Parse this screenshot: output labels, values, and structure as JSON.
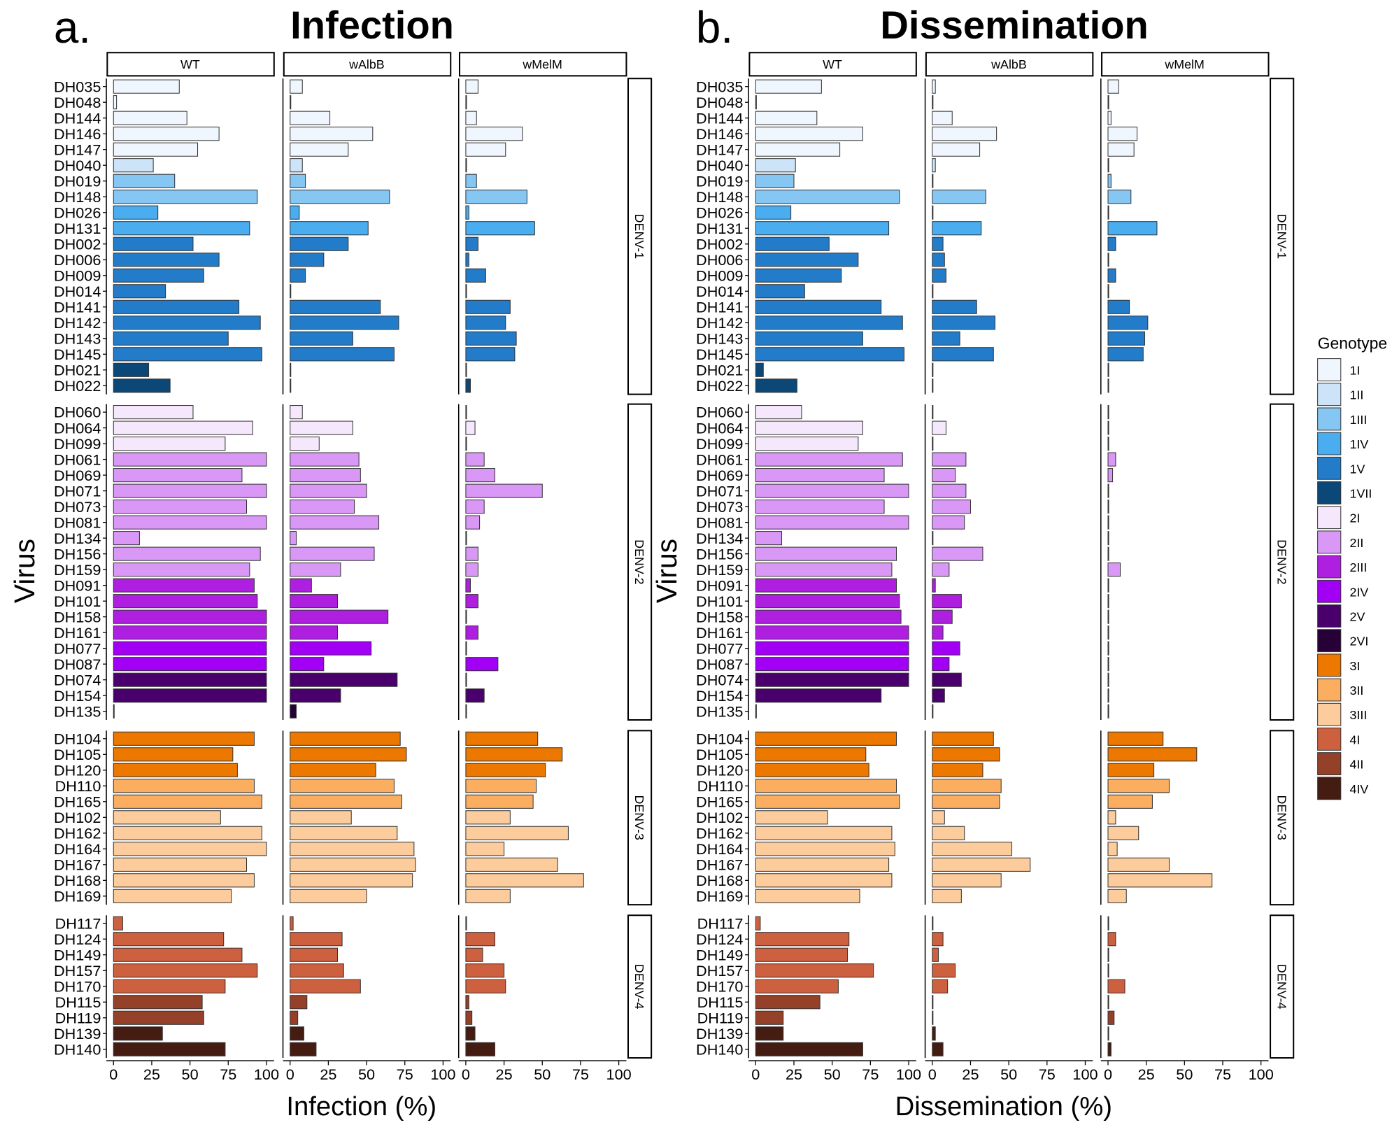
{
  "legend": {
    "title": "Genotype",
    "placement": "right",
    "items": [
      {
        "label": "1I",
        "color": "#eff6fd"
      },
      {
        "label": "1II",
        "color": "#cde4f8"
      },
      {
        "label": "1III",
        "color": "#86c6f3"
      },
      {
        "label": "1IV",
        "color": "#4aadef"
      },
      {
        "label": "1V",
        "color": "#237cca"
      },
      {
        "label": "1VII",
        "color": "#0c4877"
      },
      {
        "label": "2I",
        "color": "#f6e8fc"
      },
      {
        "label": "2II",
        "color": "#da98f6"
      },
      {
        "label": "2III",
        "color": "#ae1fdf"
      },
      {
        "label": "2IV",
        "color": "#a100f5"
      },
      {
        "label": "2V",
        "color": "#4a006c"
      },
      {
        "label": "2VI",
        "color": "#270038"
      },
      {
        "label": "3I",
        "color": "#ec7800"
      },
      {
        "label": "3II",
        "color": "#fbae5f"
      },
      {
        "label": "3III",
        "color": "#fdcc9c"
      },
      {
        "label": "4I",
        "color": "#cd603e"
      },
      {
        "label": "4II",
        "color": "#954028"
      },
      {
        "label": "4IV",
        "color": "#451c12"
      }
    ]
  },
  "ylabel": "Virus",
  "serotypes": [
    "DENV-1",
    "DENV-2",
    "DENV-3",
    "DENV-4"
  ],
  "viruses": [
    {
      "virus": "DH035",
      "serotype": "DENV-1",
      "genotype": "1I"
    },
    {
      "virus": "DH048",
      "serotype": "DENV-1",
      "genotype": "1I"
    },
    {
      "virus": "DH144",
      "serotype": "DENV-1",
      "genotype": "1I"
    },
    {
      "virus": "DH146",
      "serotype": "DENV-1",
      "genotype": "1I"
    },
    {
      "virus": "DH147",
      "serotype": "DENV-1",
      "genotype": "1I"
    },
    {
      "virus": "DH040",
      "serotype": "DENV-1",
      "genotype": "1II"
    },
    {
      "virus": "DH019",
      "serotype": "DENV-1",
      "genotype": "1III"
    },
    {
      "virus": "DH148",
      "serotype": "DENV-1",
      "genotype": "1III"
    },
    {
      "virus": "DH026",
      "serotype": "DENV-1",
      "genotype": "1IV"
    },
    {
      "virus": "DH131",
      "serotype": "DENV-1",
      "genotype": "1IV"
    },
    {
      "virus": "DH002",
      "serotype": "DENV-1",
      "genotype": "1V"
    },
    {
      "virus": "DH006",
      "serotype": "DENV-1",
      "genotype": "1V"
    },
    {
      "virus": "DH009",
      "serotype": "DENV-1",
      "genotype": "1V"
    },
    {
      "virus": "DH014",
      "serotype": "DENV-1",
      "genotype": "1V"
    },
    {
      "virus": "DH141",
      "serotype": "DENV-1",
      "genotype": "1V"
    },
    {
      "virus": "DH142",
      "serotype": "DENV-1",
      "genotype": "1V"
    },
    {
      "virus": "DH143",
      "serotype": "DENV-1",
      "genotype": "1V"
    },
    {
      "virus": "DH145",
      "serotype": "DENV-1",
      "genotype": "1V"
    },
    {
      "virus": "DH021",
      "serotype": "DENV-1",
      "genotype": "1VII"
    },
    {
      "virus": "DH022",
      "serotype": "DENV-1",
      "genotype": "1VII"
    },
    {
      "virus": "DH060",
      "serotype": "DENV-2",
      "genotype": "2I"
    },
    {
      "virus": "DH064",
      "serotype": "DENV-2",
      "genotype": "2I"
    },
    {
      "virus": "DH099",
      "serotype": "DENV-2",
      "genotype": "2I"
    },
    {
      "virus": "DH061",
      "serotype": "DENV-2",
      "genotype": "2II"
    },
    {
      "virus": "DH069",
      "serotype": "DENV-2",
      "genotype": "2II"
    },
    {
      "virus": "DH071",
      "serotype": "DENV-2",
      "genotype": "2II"
    },
    {
      "virus": "DH073",
      "serotype": "DENV-2",
      "genotype": "2II"
    },
    {
      "virus": "DH081",
      "serotype": "DENV-2",
      "genotype": "2II"
    },
    {
      "virus": "DH134",
      "serotype": "DENV-2",
      "genotype": "2II"
    },
    {
      "virus": "DH156",
      "serotype": "DENV-2",
      "genotype": "2II"
    },
    {
      "virus": "DH159",
      "serotype": "DENV-2",
      "genotype": "2II"
    },
    {
      "virus": "DH091",
      "serotype": "DENV-2",
      "genotype": "2III"
    },
    {
      "virus": "DH101",
      "serotype": "DENV-2",
      "genotype": "2III"
    },
    {
      "virus": "DH158",
      "serotype": "DENV-2",
      "genotype": "2III"
    },
    {
      "virus": "DH161",
      "serotype": "DENV-2",
      "genotype": "2III"
    },
    {
      "virus": "DH077",
      "serotype": "DENV-2",
      "genotype": "2IV"
    },
    {
      "virus": "DH087",
      "serotype": "DENV-2",
      "genotype": "2IV"
    },
    {
      "virus": "DH074",
      "serotype": "DENV-2",
      "genotype": "2V"
    },
    {
      "virus": "DH154",
      "serotype": "DENV-2",
      "genotype": "2V"
    },
    {
      "virus": "DH135",
      "serotype": "DENV-2",
      "genotype": "2VI"
    },
    {
      "virus": "DH104",
      "serotype": "DENV-3",
      "genotype": "3I"
    },
    {
      "virus": "DH105",
      "serotype": "DENV-3",
      "genotype": "3I"
    },
    {
      "virus": "DH120",
      "serotype": "DENV-3",
      "genotype": "3I"
    },
    {
      "virus": "DH110",
      "serotype": "DENV-3",
      "genotype": "3II"
    },
    {
      "virus": "DH165",
      "serotype": "DENV-3",
      "genotype": "3II"
    },
    {
      "virus": "DH102",
      "serotype": "DENV-3",
      "genotype": "3III"
    },
    {
      "virus": "DH162",
      "serotype": "DENV-3",
      "genotype": "3III"
    },
    {
      "virus": "DH164",
      "serotype": "DENV-3",
      "genotype": "3III"
    },
    {
      "virus": "DH167",
      "serotype": "DENV-3",
      "genotype": "3III"
    },
    {
      "virus": "DH168",
      "serotype": "DENV-3",
      "genotype": "3III"
    },
    {
      "virus": "DH169",
      "serotype": "DENV-3",
      "genotype": "3III"
    },
    {
      "virus": "DH117",
      "serotype": "DENV-4",
      "genotype": "4I"
    },
    {
      "virus": "DH124",
      "serotype": "DENV-4",
      "genotype": "4I"
    },
    {
      "virus": "DH149",
      "serotype": "DENV-4",
      "genotype": "4I"
    },
    {
      "virus": "DH157",
      "serotype": "DENV-4",
      "genotype": "4I"
    },
    {
      "virus": "DH170",
      "serotype": "DENV-4",
      "genotype": "4I"
    },
    {
      "virus": "DH115",
      "serotype": "DENV-4",
      "genotype": "4II"
    },
    {
      "virus": "DH119",
      "serotype": "DENV-4",
      "genotype": "4II"
    },
    {
      "virus": "DH139",
      "serotype": "DENV-4",
      "genotype": "4IV"
    },
    {
      "virus": "DH140",
      "serotype": "DENV-4",
      "genotype": "4IV"
    }
  ],
  "chart_data": [
    {
      "type": "bar",
      "orientation": "horizontal",
      "panel_label": "a.",
      "title": "Infection",
      "xlabel": "Infection (%)",
      "ylabel": "Virus",
      "xlim": [
        0,
        100
      ],
      "xticks": [
        "0",
        "25",
        "50",
        "75",
        "100"
      ],
      "grid": false,
      "columns": [
        "WT",
        "wAlbB",
        "wMelM"
      ],
      "series": [
        {
          "name": "WT",
          "values": [
            43,
            2,
            48,
            69,
            55,
            26,
            40,
            94,
            29,
            89,
            52,
            69,
            59,
            34,
            82,
            96,
            75,
            97,
            23,
            37,
            52,
            91,
            73,
            100,
            84,
            100,
            87,
            100,
            17,
            96,
            89,
            92,
            94,
            100,
            100,
            100,
            100,
            100,
            100,
            0,
            92,
            78,
            81,
            92,
            97,
            70,
            97,
            100,
            87,
            92,
            77,
            6,
            72,
            84,
            94,
            73,
            58,
            59,
            32,
            73
          ]
        },
        {
          "name": "wAlbB",
          "values": [
            8,
            0,
            26,
            54,
            38,
            8,
            10,
            65,
            6,
            51,
            38,
            22,
            10,
            0,
            59,
            71,
            41,
            68,
            0,
            0,
            8,
            41,
            19,
            45,
            46,
            50,
            42,
            58,
            4,
            55,
            33,
            14,
            31,
            64,
            31,
            53,
            22,
            70,
            33,
            4,
            72,
            76,
            56,
            68,
            73,
            40,
            70,
            81,
            82,
            80,
            50,
            2,
            34,
            31,
            35,
            46,
            11,
            5,
            9,
            17
          ]
        },
        {
          "name": "wMelM",
          "values": [
            8,
            0,
            7,
            37,
            26,
            0,
            7,
            40,
            2,
            45,
            8,
            2,
            13,
            0,
            29,
            26,
            33,
            32,
            0,
            3,
            0,
            6,
            0,
            12,
            19,
            50,
            12,
            9,
            0,
            8,
            8,
            3,
            8,
            0,
            8,
            0,
            21,
            0,
            12,
            0,
            47,
            63,
            52,
            46,
            44,
            29,
            67,
            25,
            60,
            77,
            29,
            0,
            19,
            11,
            25,
            26,
            2,
            4,
            6,
            19
          ]
        }
      ]
    },
    {
      "type": "bar",
      "orientation": "horizontal",
      "panel_label": "b.",
      "title": "Dissemination",
      "xlabel": "Dissemination (%)",
      "ylabel": "Virus",
      "xlim": [
        0,
        100
      ],
      "xticks": [
        "0",
        "25",
        "50",
        "75",
        "100"
      ],
      "grid": false,
      "columns": [
        "WT",
        "wAlbB",
        "wMelM"
      ],
      "series": [
        {
          "name": "WT",
          "values": [
            43,
            0,
            40,
            70,
            55,
            26,
            25,
            94,
            23,
            87,
            48,
            67,
            56,
            32,
            82,
            96,
            70,
            97,
            5,
            27,
            30,
            70,
            67,
            96,
            84,
            100,
            84,
            100,
            17,
            92,
            89,
            92,
            94,
            95,
            100,
            100,
            100,
            100,
            82,
            0,
            92,
            72,
            74,
            92,
            94,
            47,
            89,
            91,
            87,
            89,
            68,
            3,
            61,
            60,
            77,
            54,
            42,
            18,
            18,
            70
          ]
        },
        {
          "name": "wAlbB",
          "values": [
            2,
            0,
            13,
            42,
            31,
            2,
            0,
            35,
            0,
            32,
            7,
            8,
            9,
            0,
            29,
            41,
            18,
            40,
            0,
            0,
            0,
            9,
            0,
            22,
            15,
            22,
            25,
            21,
            0,
            33,
            11,
            2,
            19,
            13,
            7,
            18,
            11,
            19,
            8,
            0,
            40,
            44,
            33,
            45,
            44,
            8,
            21,
            52,
            64,
            45,
            19,
            0,
            7,
            4,
            15,
            10,
            0,
            0,
            2,
            7
          ]
        },
        {
          "name": "wMelM",
          "values": [
            7,
            0,
            2,
            19,
            17,
            0,
            2,
            15,
            0,
            32,
            5,
            0,
            5,
            0,
            14,
            26,
            24,
            23,
            0,
            0,
            0,
            0,
            0,
            5,
            3,
            0,
            0,
            0,
            0,
            0,
            8,
            0,
            0,
            0,
            0,
            0,
            0,
            0,
            0,
            0,
            36,
            58,
            30,
            40,
            29,
            5,
            20,
            6,
            40,
            68,
            12,
            0,
            5,
            0,
            0,
            11,
            0,
            4,
            0,
            2
          ]
        }
      ]
    }
  ]
}
